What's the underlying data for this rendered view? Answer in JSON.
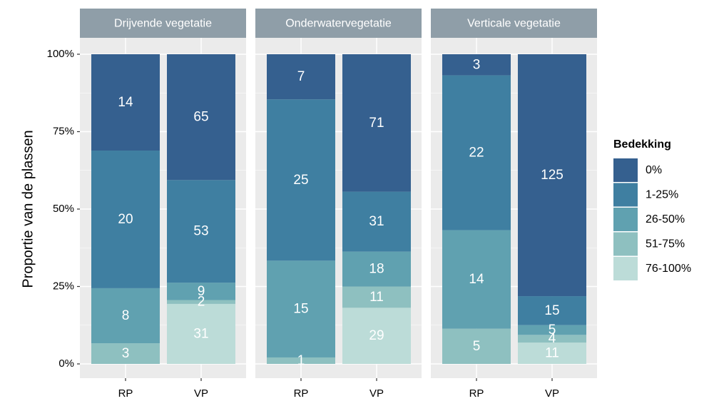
{
  "chart_data": {
    "type": "bar",
    "stacked": "proportion",
    "ylabel": "Proportie van de plassen",
    "y_ticks": [
      "0%",
      "25%",
      "50%",
      "75%",
      "100%"
    ],
    "ylim": [
      0,
      1
    ],
    "categories": [
      "RP",
      "VP"
    ],
    "legend": {
      "title": "Bedekking",
      "position": "right",
      "levels": [
        "0%",
        "1-25%",
        "26-50%",
        "51-75%",
        "76-100%"
      ],
      "colors": [
        "#35608f",
        "#3f7fa1",
        "#60a1b0",
        "#8ec0c0",
        "#bcdcd8"
      ]
    },
    "facets": [
      {
        "title": "Drijvende vegetatie",
        "bars": [
          {
            "category": "RP",
            "counts": [
              14,
              20,
              8,
              3,
              0
            ]
          },
          {
            "category": "VP",
            "counts": [
              65,
              53,
              9,
              2,
              31
            ]
          }
        ]
      },
      {
        "title": "Onderwatervegetatie",
        "bars": [
          {
            "category": "RP",
            "counts": [
              7,
              25,
              15,
              1,
              0
            ]
          },
          {
            "category": "VP",
            "counts": [
              71,
              31,
              18,
              11,
              29
            ]
          }
        ]
      },
      {
        "title": "Verticale vegetatie",
        "bars": [
          {
            "category": "RP",
            "counts": [
              3,
              22,
              14,
              5,
              0
            ]
          },
          {
            "category": "VP",
            "counts": [
              125,
              15,
              5,
              4,
              11
            ]
          }
        ]
      }
    ]
  },
  "style": {
    "panel_bg": "#ebebeb",
    "grid_color": "#ffffff",
    "strip_bg": "#8f9ea8",
    "label_color": "#ffffff"
  }
}
